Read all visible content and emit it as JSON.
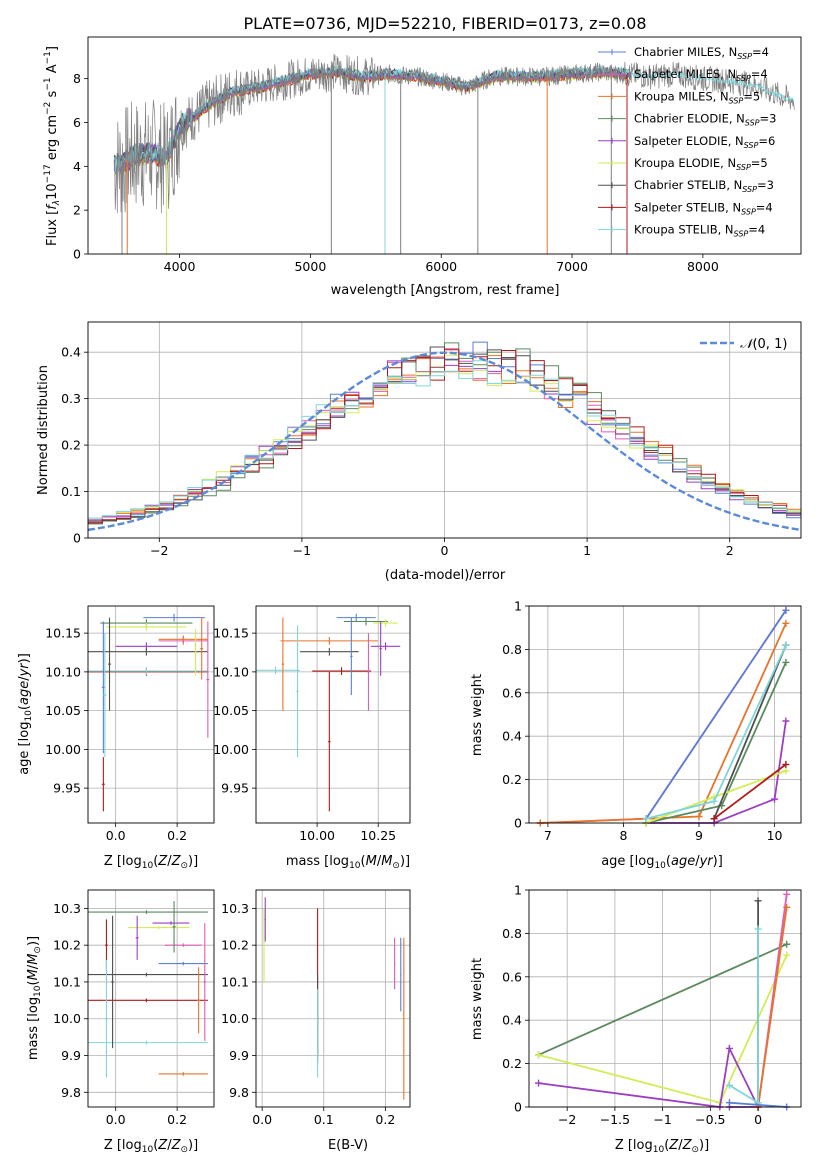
{
  "figure_title": "PLATE=0736, MJD=52210, FIBERID=0173, z=0.08",
  "colors": {
    "chabrier_miles": "#5b7fd6",
    "salpeter_miles": "#e05cb5",
    "kroupa_miles": "#e8732a",
    "chabrier_elodie": "#5a8a5e",
    "salpeter_elodie": "#9b3fc0",
    "kroupa_elodie": "#d3ec55",
    "chabrier_stelib": "#505050",
    "salpeter_stelib": "#b01a1a",
    "kroupa_stelib": "#7fd6da",
    "data_gray": "#808080",
    "normal_curve": "#5b8ad8",
    "grid": "#b0b0b0"
  },
  "chart_data": [
    {
      "id": "spectrum",
      "type": "line",
      "xlabel": "wavelength [Angstrom, rest frame]",
      "ylabel": "Flux [f_λ 10^-17 erg cm^-2 s^-1 A^-1]",
      "xlim": [
        3300,
        8750
      ],
      "ylim": [
        0,
        9.9
      ],
      "xticks": [
        4000,
        5000,
        6000,
        7000,
        8000
      ],
      "yticks": [
        0,
        2,
        4,
        6,
        8
      ],
      "grid": false,
      "legend_position": "top-right",
      "continuum_x": [
        3500,
        3550,
        3650,
        3800,
        3900,
        4000,
        4200,
        4400,
        4600,
        4800,
        5000,
        5200,
        5400,
        5600,
        5800,
        6000,
        6200,
        6400,
        6600,
        6800,
        7000,
        7200,
        7400,
        7600,
        7800,
        8000,
        8200,
        8400,
        8600,
        8700
      ],
      "continuum_y": [
        4.0,
        4.1,
        4.5,
        4.6,
        4.3,
        5.8,
        6.7,
        7.4,
        7.6,
        7.9,
        8.2,
        8.3,
        8.1,
        8.2,
        8.1,
        7.9,
        7.6,
        8.1,
        8.1,
        8.1,
        8.2,
        8.3,
        8.2,
        8.1,
        8.2,
        8.0,
        7.9,
        7.7,
        7.2,
        7.0
      ],
      "series": [
        {
          "name": "Chabrier MILES, N_SSP=4",
          "color_key": "chabrier_miles"
        },
        {
          "name": "Salpeter MILES, N_SSP=4",
          "color_key": "salpeter_miles"
        },
        {
          "name": "Kroupa MILES, N_SSP=5",
          "color_key": "kroupa_miles"
        },
        {
          "name": "Chabrier ELODIE, N_SSP=3",
          "color_key": "chabrier_elodie"
        },
        {
          "name": "Salpeter ELODIE, N_SSP=6",
          "color_key": "salpeter_elodie"
        },
        {
          "name": "Kroupa ELODIE, N_SSP=5",
          "color_key": "kroupa_elodie"
        },
        {
          "name": "Chabrier STELIB, N_SSP=3",
          "color_key": "chabrier_stelib"
        },
        {
          "name": "Salpeter STELIB, N_SSP=4",
          "color_key": "salpeter_stelib"
        },
        {
          "name": "Kroupa STELIB, N_SSP=4",
          "color_key": "kroupa_stelib"
        }
      ]
    },
    {
      "id": "residuals",
      "type": "line",
      "xlabel": "(data-model)/error",
      "ylabel": "Normed distribution",
      "xlim": [
        -2.5,
        2.5
      ],
      "ylim": [
        0,
        0.465
      ],
      "xticks": [
        -2,
        -1,
        0,
        1,
        2
      ],
      "yticks": [
        0.0,
        0.1,
        0.2,
        0.3,
        0.4
      ],
      "grid": true,
      "legend_position": "top-right",
      "curve_label": "N(0,1)",
      "bin_width": 0.1,
      "series_order": [
        "chabrier_miles",
        "salpeter_miles",
        "kroupa_miles",
        "chabrier_elodie",
        "salpeter_elodie",
        "kroupa_elodie",
        "chabrier_stelib",
        "salpeter_stelib",
        "kroupa_stelib"
      ]
    },
    {
      "id": "age_vs_z",
      "type": "scatter",
      "xlabel": "Z [log10(Z/Z_sun)]",
      "ylabel": "age [log10(age/yr)]",
      "xlim": [
        -0.09,
        0.32
      ],
      "ylim": [
        9.905,
        10.185
      ],
      "xticks": [
        0.0,
        0.2
      ],
      "xticklabels": [
        "0.0",
        "0.2"
      ],
      "yticks": [
        9.95,
        10.0,
        10.05,
        10.1,
        10.15
      ],
      "yticklabels": [
        "9.95",
        "10.00",
        "10.05",
        "10.10",
        "10.15"
      ],
      "grid": true,
      "points": [
        {
          "x": 0.19,
          "xerr": 0.1,
          "y": 10.17,
          "yerr": 0.005,
          "color_key": "chabrier_miles"
        },
        {
          "x": 0.22,
          "xerr": 0.08,
          "y": 10.14,
          "yerr": 0.005,
          "color_key": "salpeter_miles"
        },
        {
          "x": 0.22,
          "xerr": 0.08,
          "y": 10.142,
          "yerr": 0.005,
          "color_key": "kroupa_miles"
        },
        {
          "x": 0.1,
          "xerr": 0.15,
          "y": 10.163,
          "yerr": 0.005,
          "color_key": "chabrier_elodie"
        },
        {
          "x": 0.1,
          "xerr": 0.1,
          "y": 10.133,
          "yerr": 0.005,
          "color_key": "salpeter_elodie"
        },
        {
          "x": 0.1,
          "xerr": 0.13,
          "y": 10.158,
          "yerr": 0.005,
          "color_key": "kroupa_elodie"
        },
        {
          "x": 0.1,
          "xerr": 0.2,
          "y": 10.126,
          "yerr": 0.005,
          "color_key": "chabrier_stelib"
        },
        {
          "x": 0.1,
          "xerr": 0.2,
          "y": 10.1,
          "yerr": 0.005,
          "color_key": "salpeter_stelib"
        },
        {
          "x": 0.1,
          "xerr": 0.2,
          "y": 10.101,
          "yerr": 0.005,
          "color_key": "kroupa_stelib"
        },
        {
          "x": -0.04,
          "xerr": 0.005,
          "y": 10.08,
          "yerr": 0.085,
          "color_key": "chabrier_miles"
        },
        {
          "x": -0.02,
          "xerr": 0.005,
          "y": 10.11,
          "yerr": 0.06,
          "color_key": "chabrier_stelib"
        },
        {
          "x": -0.04,
          "xerr": 0.005,
          "y": 9.955,
          "yerr": 0.035,
          "color_key": "salpeter_stelib"
        },
        {
          "x": 0.28,
          "xerr": 0.005,
          "y": 10.13,
          "yerr": 0.04,
          "color_key": "kroupa_miles"
        },
        {
          "x": 0.3,
          "xerr": 0.005,
          "y": 10.09,
          "yerr": 0.075,
          "color_key": "salpeter_miles"
        },
        {
          "x": 0.26,
          "xerr": 0.005,
          "y": 10.125,
          "yerr": 0.03,
          "color_key": "kroupa_elodie"
        },
        {
          "x": -0.035,
          "xerr": 0.005,
          "y": 10.07,
          "yerr": 0.08,
          "color_key": "kroupa_stelib"
        }
      ]
    },
    {
      "id": "age_vs_mass",
      "type": "scatter",
      "xlabel": "mass [log10(M/M_sun)]",
      "ylabel": "",
      "xlim": [
        9.75,
        10.38
      ],
      "ylim": [
        9.905,
        10.185
      ],
      "xticks": [
        10.0,
        10.25
      ],
      "xticklabels": [
        "10.00",
        "10.25"
      ],
      "yticks": [
        9.95,
        10.0,
        10.05,
        10.1,
        10.15
      ],
      "yticklabels": [
        "9.95",
        "10.00",
        "10.05",
        "10.10",
        "10.15"
      ],
      "grid": true,
      "points": [
        {
          "x": 10.16,
          "xerr": 0.08,
          "y": 10.17,
          "yerr": 0.005,
          "color_key": "chabrier_miles"
        },
        {
          "x": 10.2,
          "xerr": 0.09,
          "y": 10.165,
          "yerr": 0.005,
          "color_key": "chabrier_elodie"
        },
        {
          "x": 10.28,
          "xerr": 0.05,
          "y": 10.163,
          "yerr": 0.005,
          "color_key": "kroupa_elodie"
        },
        {
          "x": 10.05,
          "xerr": 0.2,
          "y": 10.14,
          "yerr": 0.005,
          "color_key": "kroupa_miles"
        },
        {
          "x": 10.28,
          "xerr": 0.06,
          "y": 10.133,
          "yerr": 0.005,
          "color_key": "salpeter_elodie"
        },
        {
          "x": 10.05,
          "xerr": 0.12,
          "y": 10.126,
          "yerr": 0.005,
          "color_key": "chabrier_stelib"
        },
        {
          "x": 10.1,
          "xerr": 0.12,
          "y": 10.101,
          "yerr": 0.005,
          "color_key": "salpeter_stelib"
        },
        {
          "x": 9.83,
          "xerr": 0.1,
          "y": 10.102,
          "yerr": 0.005,
          "color_key": "kroupa_stelib"
        },
        {
          "x": 9.86,
          "xerr": 0.005,
          "y": 10.11,
          "yerr": 0.06,
          "color_key": "kroupa_miles"
        },
        {
          "x": 9.92,
          "xerr": 0.005,
          "y": 10.075,
          "yerr": 0.085,
          "color_key": "kroupa_stelib"
        },
        {
          "x": 10.05,
          "xerr": 0.005,
          "y": 10.01,
          "yerr": 0.09,
          "color_key": "salpeter_stelib"
        },
        {
          "x": 10.14,
          "xerr": 0.005,
          "y": 10.12,
          "yerr": 0.05,
          "color_key": "chabrier_miles"
        },
        {
          "x": 10.21,
          "xerr": 0.005,
          "y": 10.1,
          "yerr": 0.05,
          "color_key": "salpeter_miles"
        },
        {
          "x": 10.26,
          "xerr": 0.005,
          "y": 10.13,
          "yerr": 0.035,
          "color_key": "salpeter_elodie"
        }
      ]
    },
    {
      "id": "weight_vs_age",
      "type": "line",
      "xlabel": "age [log10(age/yr)]",
      "ylabel": "mass weight",
      "xlim": [
        6.75,
        10.35
      ],
      "ylim": [
        0,
        1.0
      ],
      "xticks": [
        7,
        8,
        9,
        10
      ],
      "yticks": [
        0.0,
        0.2,
        0.4,
        0.6,
        0.8,
        1.0
      ],
      "grid": true,
      "series": [
        {
          "color_key": "salpeter_miles",
          "x": [
            6.9,
            8.3,
            10.15
          ],
          "y": [
            0.0,
            0.02,
            0.98
          ]
        },
        {
          "color_key": "chabrier_miles",
          "x": [
            8.3,
            10.15
          ],
          "y": [
            0.02,
            0.98
          ]
        },
        {
          "color_key": "kroupa_miles",
          "x": [
            6.9,
            8.3,
            9.0,
            10.15
          ],
          "y": [
            0.0,
            0.02,
            0.03,
            0.92
          ]
        },
        {
          "color_key": "chabrier_elodie",
          "x": [
            8.3,
            9.3,
            10.15
          ],
          "y": [
            0.0,
            0.08,
            0.74
          ]
        },
        {
          "color_key": "salpeter_elodie",
          "x": [
            8.3,
            9.2,
            10.0,
            10.15
          ],
          "y": [
            0.0,
            0.0,
            0.11,
            0.47
          ]
        },
        {
          "color_key": "kroupa_elodie",
          "x": [
            8.3,
            9.2,
            10.15
          ],
          "y": [
            0.0,
            0.12,
            0.24
          ]
        },
        {
          "color_key": "chabrier_stelib",
          "x": [
            9.2,
            10.15
          ],
          "y": [
            0.02,
            0.82
          ]
        },
        {
          "color_key": "kroupa_stelib",
          "x": [
            8.3,
            9.2,
            10.15
          ],
          "y": [
            0.02,
            0.1,
            0.82
          ]
        },
        {
          "color_key": "salpeter_stelib",
          "x": [
            9.2,
            10.15
          ],
          "y": [
            0.02,
            0.27
          ]
        }
      ]
    },
    {
      "id": "mass_vs_z",
      "type": "scatter",
      "xlabel": "Z [log10(Z/Z_sun)]",
      "ylabel": "mass [log10(M/M_sun)]",
      "xlim": [
        -0.09,
        0.32
      ],
      "ylim": [
        9.76,
        10.35
      ],
      "xticks": [
        0.0,
        0.2
      ],
      "xticklabels": [
        "0.0",
        "0.2"
      ],
      "yticks": [
        9.8,
        9.9,
        10.0,
        10.1,
        10.2,
        10.3
      ],
      "yticklabels": [
        "9.8",
        "9.9",
        "10.0",
        "10.1",
        "10.2",
        "10.3"
      ],
      "grid": true,
      "points": [
        {
          "x": 0.1,
          "xerr": 0.2,
          "y": 10.29,
          "yerr": 0.005,
          "color_key": "chabrier_elodie"
        },
        {
          "x": 0.18,
          "xerr": 0.06,
          "y": 10.26,
          "yerr": 0.005,
          "color_key": "salpeter_elodie"
        },
        {
          "x": 0.14,
          "xerr": 0.1,
          "y": 10.248,
          "yerr": 0.005,
          "color_key": "kroupa_elodie"
        },
        {
          "x": 0.22,
          "xerr": 0.06,
          "y": 10.2,
          "yerr": 0.005,
          "color_key": "salpeter_miles"
        },
        {
          "x": 0.22,
          "xerr": 0.08,
          "y": 10.15,
          "yerr": 0.005,
          "color_key": "chabrier_miles"
        },
        {
          "x": 0.1,
          "xerr": 0.2,
          "y": 10.12,
          "yerr": 0.005,
          "color_key": "chabrier_stelib"
        },
        {
          "x": 0.1,
          "xerr": 0.2,
          "y": 10.05,
          "yerr": 0.005,
          "color_key": "salpeter_stelib"
        },
        {
          "x": 0.1,
          "xerr": 0.2,
          "y": 9.935,
          "yerr": 0.005,
          "color_key": "kroupa_stelib"
        },
        {
          "x": 0.22,
          "xerr": 0.08,
          "y": 9.85,
          "yerr": 0.005,
          "color_key": "kroupa_miles"
        },
        {
          "x": -0.03,
          "xerr": 0.005,
          "y": 10.2,
          "yerr": 0.07,
          "color_key": "salpeter_stelib"
        },
        {
          "x": -0.01,
          "xerr": 0.005,
          "y": 10.1,
          "yerr": 0.18,
          "color_key": "chabrier_stelib"
        },
        {
          "x": -0.03,
          "xerr": 0.005,
          "y": 10.0,
          "yerr": 0.16,
          "color_key": "kroupa_stelib"
        },
        {
          "x": 0.07,
          "xerr": 0.005,
          "y": 10.22,
          "yerr": 0.06,
          "color_key": "salpeter_elodie"
        },
        {
          "x": 0.19,
          "xerr": 0.005,
          "y": 10.25,
          "yerr": 0.07,
          "color_key": "chabrier_elodie"
        },
        {
          "x": 0.29,
          "xerr": 0.005,
          "y": 10.1,
          "yerr": 0.16,
          "color_key": "salpeter_miles"
        },
        {
          "x": 0.27,
          "xerr": 0.005,
          "y": 10.05,
          "yerr": 0.09,
          "color_key": "kroupa_miles"
        }
      ]
    },
    {
      "id": "mass_vs_ebv",
      "type": "scatter",
      "xlabel": "E(B-V)",
      "ylabel": "",
      "xlim": [
        -0.01,
        0.24
      ],
      "ylim": [
        9.76,
        10.35
      ],
      "xticks": [
        0.0,
        0.1,
        0.2
      ],
      "xticklabels": [
        "0.0",
        "0.1",
        "0.2"
      ],
      "yticks": [
        9.8,
        9.9,
        10.0,
        10.1,
        10.2,
        10.3
      ],
      "yticklabels": [
        "9.8",
        "9.9",
        "10.0",
        "10.1",
        "10.2",
        "10.3"
      ],
      "grid": true,
      "points": [
        {
          "x": 0.005,
          "xerr": 0.001,
          "y": 10.27,
          "yerr": 0.06,
          "color_key": "salpeter_elodie"
        },
        {
          "x": 0.003,
          "xerr": 0.001,
          "y": 10.2,
          "yerr": 0.1,
          "color_key": "kroupa_elodie"
        },
        {
          "x": 0.09,
          "xerr": 0.001,
          "y": 10.1,
          "yerr": 0.2,
          "color_key": "salpeter_stelib"
        },
        {
          "x": 0.09,
          "xerr": 0.001,
          "y": 10.0,
          "yerr": 0.12,
          "color_key": "chabrier_stelib"
        },
        {
          "x": 0.09,
          "xerr": 0.001,
          "y": 9.96,
          "yerr": 0.12,
          "color_key": "kroupa_stelib"
        },
        {
          "x": 0.215,
          "xerr": 0.001,
          "y": 10.15,
          "yerr": 0.07,
          "color_key": "salpeter_miles"
        },
        {
          "x": 0.225,
          "xerr": 0.001,
          "y": 10.12,
          "yerr": 0.1,
          "color_key": "chabrier_miles"
        },
        {
          "x": 0.23,
          "xerr": 0.001,
          "y": 10.0,
          "yerr": 0.22,
          "color_key": "kroupa_miles"
        }
      ]
    },
    {
      "id": "weight_vs_z",
      "type": "line",
      "xlabel": "Z [log10(Z/Z_sun)]",
      "ylabel": "mass weight",
      "xlim": [
        -2.4,
        0.45
      ],
      "ylim": [
        0,
        1.0
      ],
      "xticks": [
        -2.0,
        -1.5,
        -1.0,
        -0.5,
        0.0
      ],
      "yticks": [
        0.0,
        0.2,
        0.4,
        0.6,
        0.8,
        1.0
      ],
      "grid": true,
      "series": [
        {
          "color_key": "chabrier_elodie",
          "x": [
            -2.3,
            0.3
          ],
          "y": [
            0.24,
            0.75
          ]
        },
        {
          "color_key": "kroupa_elodie",
          "x": [
            -2.3,
            -0.4,
            0.3
          ],
          "y": [
            0.24,
            0.02,
            0.7
          ]
        },
        {
          "color_key": "salpeter_elodie",
          "x": [
            -2.3,
            -0.4,
            -0.3,
            0.0,
            -0.3
          ],
          "y": [
            0.11,
            0.0,
            0.27,
            0.0,
            0.0
          ]
        },
        {
          "color_key": "salpeter_miles",
          "x": [
            0.0,
            0.3
          ],
          "y": [
            0.0,
            0.98
          ]
        },
        {
          "color_key": "kroupa_miles",
          "x": [
            0.0,
            0.3
          ],
          "y": [
            0.0,
            0.92
          ]
        },
        {
          "color_key": "chabrier_stelib",
          "x": [
            0.0,
            0.0
          ],
          "y": [
            0.02,
            0.95
          ]
        },
        {
          "color_key": "kroupa_stelib",
          "x": [
            -0.3,
            0.0,
            0.0
          ],
          "y": [
            0.1,
            0.02,
            0.82
          ]
        },
        {
          "color_key": "chabrier_miles",
          "x": [
            -0.3,
            0.3
          ],
          "y": [
            0.02,
            0.0
          ]
        }
      ]
    }
  ]
}
